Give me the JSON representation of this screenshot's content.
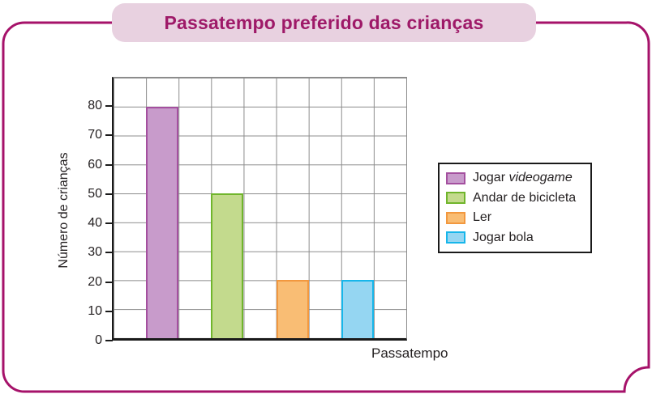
{
  "title_badge": {
    "bg": "#E8D1E0",
    "text_color": "#9E1968"
  },
  "card": {
    "border_color": "#A6126A"
  },
  "chart_data": {
    "type": "bar",
    "title": "Passatempo preferido das crianças",
    "xlabel": "Passatempo",
    "ylabel": "Número de crianças",
    "ylim": [
      0,
      90
    ],
    "ytick_step": 10,
    "ytick_labels": [
      "0",
      "10",
      "20",
      "30",
      "40",
      "50",
      "60",
      "70",
      "80"
    ],
    "grid": {
      "columns": 9,
      "rows": 9,
      "visible": true,
      "color": "#8C8C8C"
    },
    "categories": [
      "Jogar videogame",
      "Andar de bicicleta",
      "Ler",
      "Jogar bola"
    ],
    "values": [
      80,
      50,
      20,
      20
    ],
    "bar_grid_columns": [
      2,
      4,
      6,
      8
    ],
    "series_styles": [
      {
        "fill": "#C89BCB",
        "border": "#A4509F"
      },
      {
        "fill": "#C3DA8D",
        "border": "#70B52C"
      },
      {
        "fill": "#F9BD74",
        "border": "#F2983F"
      },
      {
        "fill": "#95D6F2",
        "border": "#17B6EA"
      }
    ],
    "legend": {
      "position": "right",
      "items": [
        {
          "prefix": "Jogar ",
          "italic": "videogame"
        },
        {
          "prefix": "Andar de bicicleta",
          "italic": ""
        },
        {
          "prefix": "Ler",
          "italic": ""
        },
        {
          "prefix": "Jogar bola",
          "italic": ""
        }
      ]
    }
  }
}
